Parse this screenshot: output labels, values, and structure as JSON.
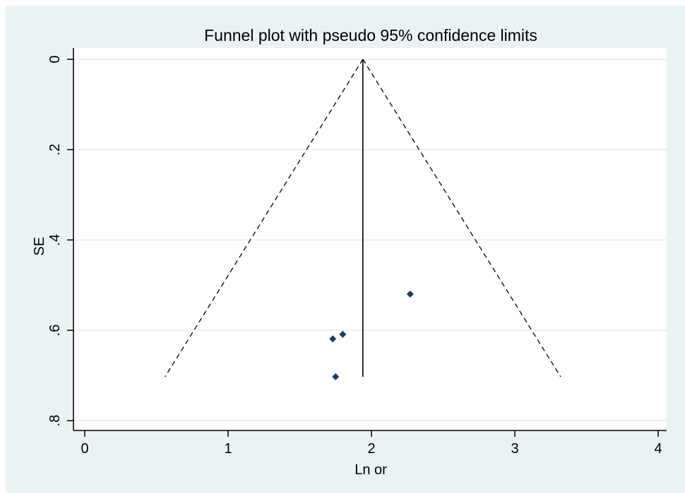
{
  "chart_data": {
    "type": "scatter",
    "title": "Funnel plot with pseudo 95% confidence limits",
    "xlabel": "Ln or",
    "ylabel": "SE",
    "xlim": [
      0,
      4
    ],
    "ylim": [
      0,
      0.8
    ],
    "y_reversed": true,
    "x_ticks": [
      0,
      1,
      2,
      3,
      4
    ],
    "x_tick_labels": [
      "0",
      "1",
      "2",
      "3",
      "4"
    ],
    "y_ticks": [
      0,
      0.2,
      0.4,
      0.6,
      0.8
    ],
    "y_tick_labels": [
      "0",
      ".2",
      ".4",
      ".6",
      ".8"
    ],
    "grid": true,
    "pooled_estimate": 1.94,
    "reference_line": {
      "x": 1.94,
      "y_from": 0,
      "y_to": 0.703
    },
    "confidence_limits": {
      "lower": [
        {
          "x": 1.94,
          "y": 0
        },
        {
          "x": 0.56,
          "y": 0.703
        }
      ],
      "upper": [
        {
          "x": 1.94,
          "y": 0
        },
        {
          "x": 3.32,
          "y": 0.703
        }
      ]
    },
    "points": [
      {
        "x": 2.27,
        "y": 0.52
      },
      {
        "x": 1.8,
        "y": 0.609
      },
      {
        "x": 1.73,
        "y": 0.619
      },
      {
        "x": 1.75,
        "y": 0.703
      }
    ],
    "colors": {
      "background": "#eaf2f3",
      "plot_area": "#ffffff",
      "marker": "#1a3d66",
      "grid": "#dde8ea"
    }
  }
}
